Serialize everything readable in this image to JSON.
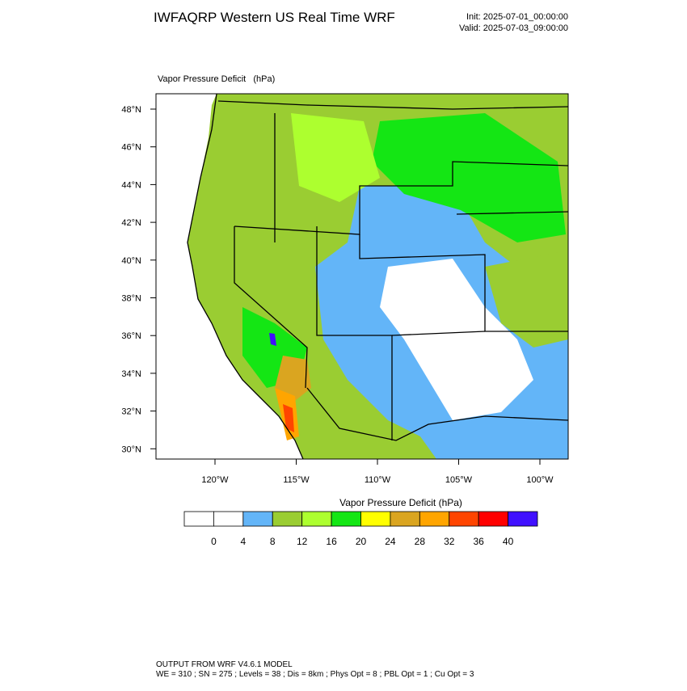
{
  "header": {
    "title": "IWFAQRP Western US Real Time WRF",
    "init": "Init: 2025-07-01_00:00:00",
    "valid": "Valid: 2025-07-03_09:00:00"
  },
  "map": {
    "label": "Vapor Pressure Deficit   (hPa)",
    "lat_labels": [
      "48°N",
      "46°N",
      "44°N",
      "42°N",
      "40°N",
      "38°N",
      "36°N",
      "34°N",
      "32°N",
      "30°N"
    ],
    "lon_labels": [
      "120°W",
      "115°W",
      "110°W",
      "105°W",
      "100°W"
    ]
  },
  "colorbar": {
    "title": "Vapor Pressure Deficit  (hPa)",
    "ticks": [
      0,
      4,
      8,
      12,
      16,
      20,
      24,
      28,
      32,
      36,
      40
    ],
    "colors": [
      "#ffffff",
      "#ffffff",
      "#63b5f8",
      "#9acd32",
      "#adff2f",
      "#14e614",
      "#ffff00",
      "#daa520",
      "#ffa500",
      "#ff4500",
      "#ff0000",
      "#4010ff"
    ]
  },
  "footer": {
    "line1": "OUTPUT FROM WRF V4.6.1 MODEL",
    "line2": "WE = 310 ; SN = 275 ; Levels = 38 ; Dis = 8km ; Phys Opt = 8 ; PBL Opt = 1 ; Cu Opt = 3"
  }
}
